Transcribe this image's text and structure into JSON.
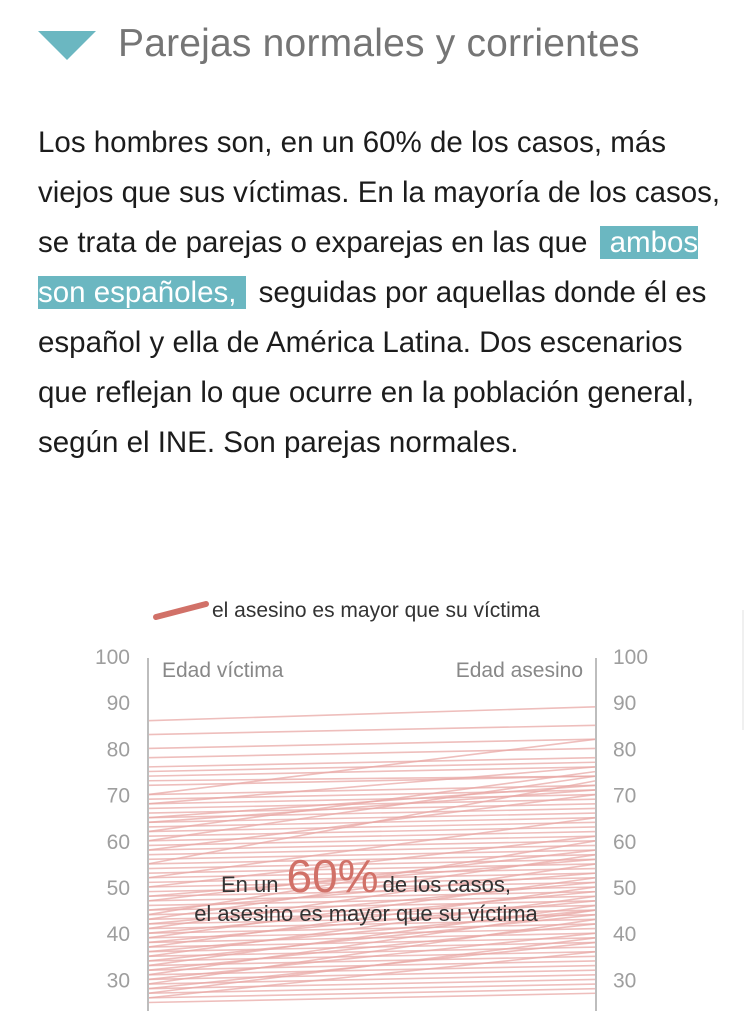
{
  "header": {
    "title": "Parejas normales y corrientes",
    "icon": "triangle-down-icon",
    "accent_color": "#6bb7c1"
  },
  "paragraph": {
    "before": "Los hombres son, en un 60% de los casos, más viejos que sus víctimas. En la mayoría de los casos, se trata de parejas o exparejas en las que",
    "highlight": "ambos son españoles,",
    "after": "seguidas por aquellas donde él es español y ella de América Latina. Dos escenarios que reflejan lo que ocurre en la población general, según el INE. Son parejas normales."
  },
  "chart_data": {
    "type": "line",
    "legend": {
      "label": "el asesino es mayor que su víctima",
      "color": "#d17168",
      "placement": "top"
    },
    "left_axis_label": "Edad víctima",
    "right_axis_label": "Edad asesino",
    "ticks": [
      100,
      90,
      80,
      70,
      60,
      50,
      40,
      30
    ],
    "ylim": [
      25,
      100
    ],
    "line_color": "#e8a8a6",
    "annotation": {
      "prefix": "En un",
      "percent": "60%",
      "suffix": "de los casos,",
      "line2": "el asesino es mayor que su víctima"
    },
    "pairs": [
      [
        86,
        89
      ],
      [
        83,
        85
      ],
      [
        80,
        82
      ],
      [
        78,
        80
      ],
      [
        76,
        78
      ],
      [
        75,
        77
      ],
      [
        74,
        76
      ],
      [
        73,
        74
      ],
      [
        72,
        74
      ],
      [
        70,
        72
      ],
      [
        69,
        71
      ],
      [
        68,
        70
      ],
      [
        67,
        69
      ],
      [
        66,
        68
      ],
      [
        65,
        67
      ],
      [
        64,
        66
      ],
      [
        63,
        65
      ],
      [
        62,
        64
      ],
      [
        61,
        63
      ],
      [
        60,
        62
      ],
      [
        59,
        61
      ],
      [
        58,
        60
      ],
      [
        57,
        59
      ],
      [
        56,
        58
      ],
      [
        55,
        57
      ],
      [
        54,
        56
      ],
      [
        53,
        55
      ],
      [
        52,
        54
      ],
      [
        51,
        53
      ],
      [
        50,
        52
      ],
      [
        49,
        51
      ],
      [
        48,
        50
      ],
      [
        47,
        49
      ],
      [
        46,
        48
      ],
      [
        45,
        47
      ],
      [
        44,
        46
      ],
      [
        43,
        45
      ],
      [
        42,
        44
      ],
      [
        41,
        43
      ],
      [
        40,
        42
      ],
      [
        39,
        41
      ],
      [
        38,
        40
      ],
      [
        37,
        39
      ],
      [
        36,
        38
      ],
      [
        35,
        37
      ],
      [
        34,
        36
      ],
      [
        33,
        35
      ],
      [
        32,
        34
      ],
      [
        31,
        33
      ],
      [
        30,
        32
      ],
      [
        29,
        31
      ],
      [
        28,
        30
      ],
      [
        27,
        29
      ],
      [
        26,
        28
      ],
      [
        25,
        27
      ],
      [
        48,
        56
      ],
      [
        45,
        53
      ],
      [
        42,
        51
      ],
      [
        40,
        49
      ],
      [
        38,
        47
      ],
      [
        36,
        45
      ],
      [
        34,
        44
      ],
      [
        32,
        42
      ],
      [
        30,
        40
      ],
      [
        28,
        38
      ],
      [
        26,
        36
      ],
      [
        44,
        60
      ],
      [
        50,
        61
      ],
      [
        55,
        73
      ],
      [
        58,
        70
      ],
      [
        60,
        74
      ],
      [
        62,
        75
      ],
      [
        65,
        72
      ],
      [
        68,
        76
      ],
      [
        70,
        82
      ],
      [
        64,
        71
      ],
      [
        52,
        65
      ],
      [
        47,
        58
      ],
      [
        41,
        55
      ],
      [
        37,
        50
      ],
      [
        33,
        46
      ],
      [
        29,
        43
      ],
      [
        27,
        39
      ],
      [
        35,
        48
      ],
      [
        31,
        45
      ],
      [
        43,
        57
      ],
      [
        39,
        52
      ]
    ]
  }
}
